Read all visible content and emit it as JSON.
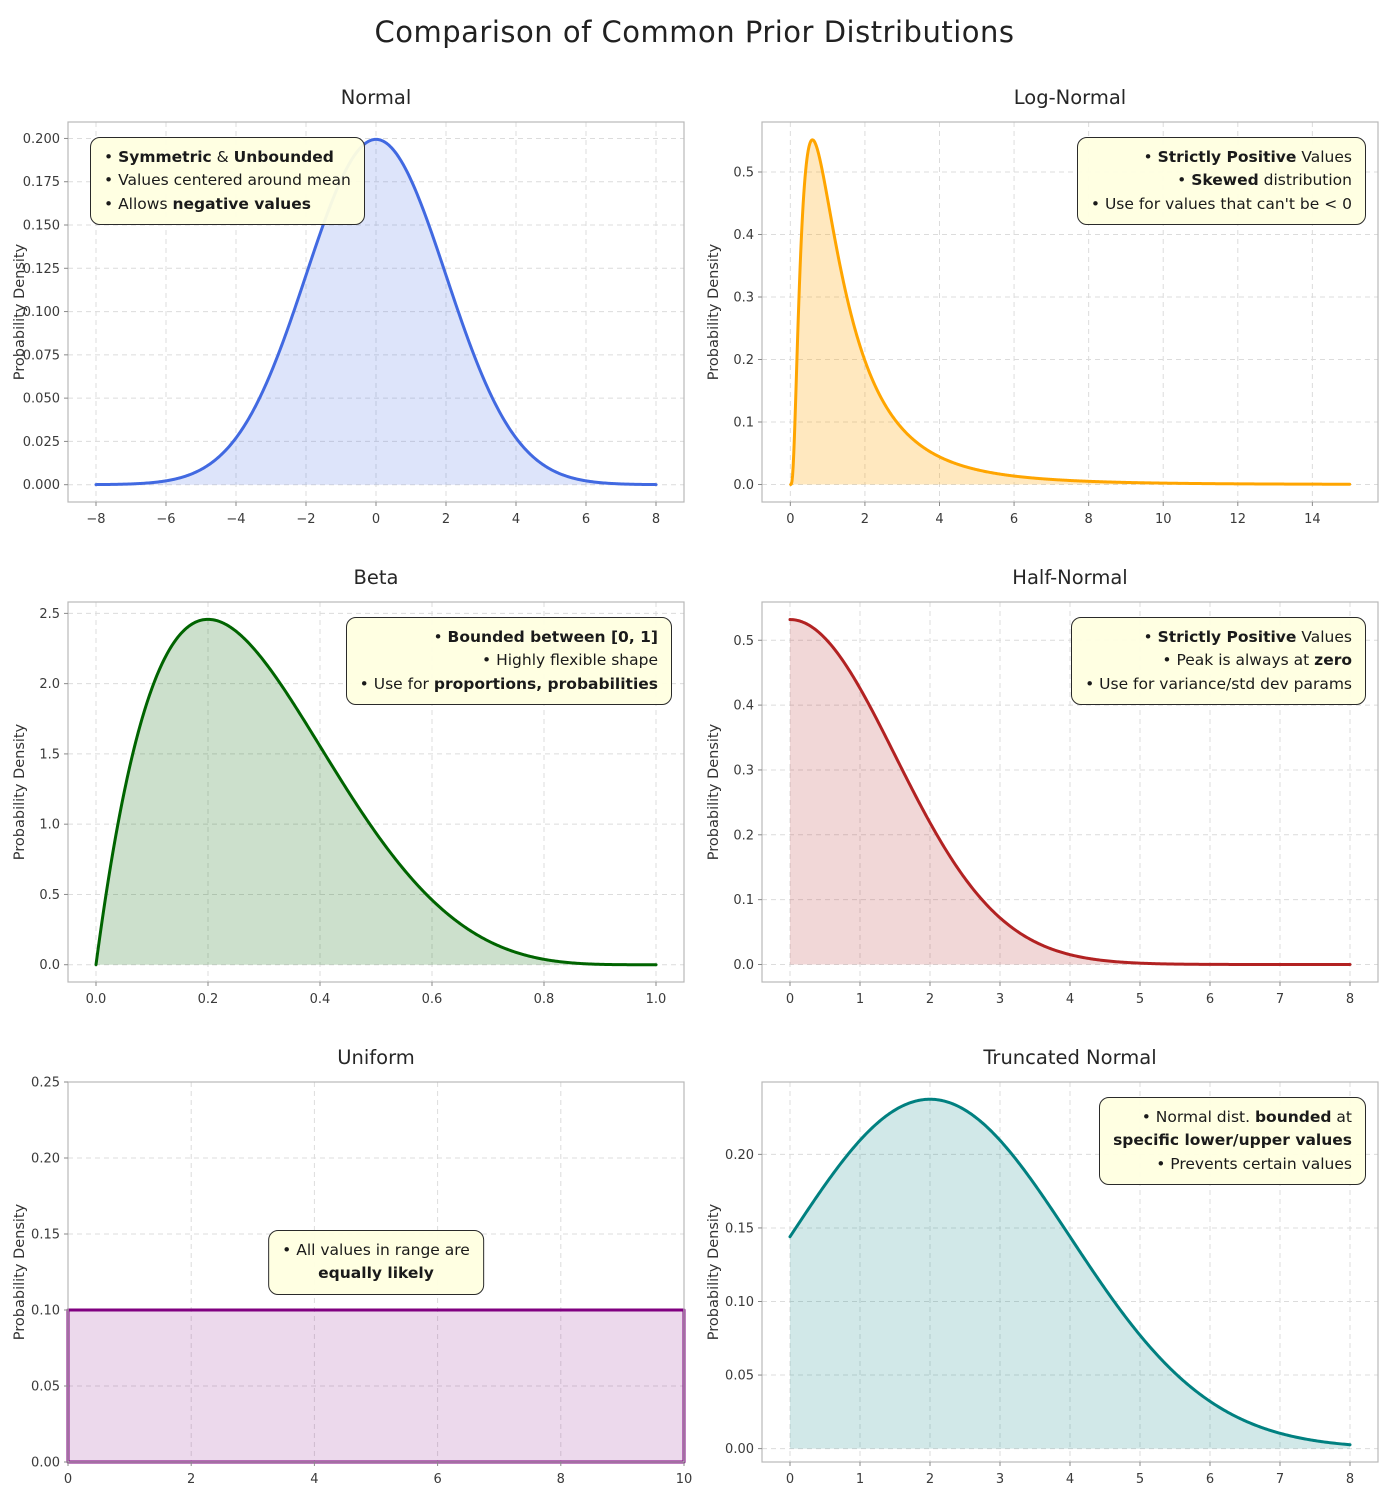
{
  "figure_title": "Comparison of Common Prior Distributions",
  "ylabel": "Probability Density",
  "chart_data": [
    {
      "type": "area",
      "title": "Normal",
      "line_color": "#4169e1",
      "fill_alpha": 0.18,
      "distribution": {
        "kind": "normal",
        "mu": 0,
        "sigma": 2
      },
      "peak": {
        "x": 0,
        "y": 0.199
      },
      "x_data_range": [
        -8,
        8
      ],
      "xlim": [
        -8.8,
        8.8
      ],
      "ylim": [
        -0.01,
        0.2095
      ],
      "x_ticks": [
        -8,
        -6,
        -4,
        -2,
        0,
        2,
        4,
        6,
        8
      ],
      "x_tick_decimals": 0,
      "y_ticks": [
        0,
        0.025,
        0.05,
        0.075,
        0.1,
        0.125,
        0.15,
        0.175,
        0.2
      ],
      "y_tick_decimals": 3,
      "grid": true,
      "annotation": {
        "align": "left",
        "anchor": "top-left",
        "lines": [
          [
            {
              "t": "• "
            },
            {
              "t": "Symmetric",
              "b": true
            },
            {
              "t": " & "
            },
            {
              "t": "Unbounded",
              "b": true
            }
          ],
          [
            {
              "t": "• Values centered around mean"
            }
          ],
          [
            {
              "t": "• Allows "
            },
            {
              "t": "negative values",
              "b": true
            }
          ]
        ]
      }
    },
    {
      "type": "area",
      "title": "Log-Normal",
      "line_color": "#ffa500",
      "fill_alpha": 0.25,
      "distribution": {
        "kind": "lognormal",
        "mu": 0.2,
        "sigma": 0.85
      },
      "peak": {
        "x": 0.59,
        "y": 0.55
      },
      "x_data_range": [
        0.01,
        15
      ],
      "xlim": [
        -0.76,
        15.76
      ],
      "ylim": [
        -0.028,
        0.58
      ],
      "x_ticks": [
        0,
        2,
        4,
        6,
        8,
        10,
        12,
        14
      ],
      "x_tick_decimals": 0,
      "y_ticks": [
        0,
        0.1,
        0.2,
        0.3,
        0.4,
        0.5
      ],
      "y_tick_decimals": 1,
      "grid": true,
      "annotation": {
        "align": "right",
        "anchor": "top-right",
        "lines": [
          [
            {
              "t": "• "
            },
            {
              "t": "Strictly Positive",
              "b": true
            },
            {
              "t": " Values"
            }
          ],
          [
            {
              "t": "• "
            },
            {
              "t": "Skewed",
              "b": true
            },
            {
              "t": " distribution"
            }
          ],
          [
            {
              "t": "• Use for values that can't be < 0"
            }
          ]
        ]
      }
    },
    {
      "type": "area",
      "title": "Beta",
      "line_color": "#006400",
      "fill_alpha": 0.2,
      "distribution": {
        "kind": "beta",
        "a": 2,
        "b": 5,
        "coef": 30
      },
      "peak": {
        "x": 0.2,
        "y": 2.46
      },
      "x_data_range": [
        0,
        1
      ],
      "xlim": [
        -0.05,
        1.05
      ],
      "ylim": [
        -0.123,
        2.581
      ],
      "x_ticks": [
        0,
        0.2,
        0.4,
        0.6,
        0.8,
        1
      ],
      "x_tick_decimals": 1,
      "y_ticks": [
        0,
        0.5,
        1,
        1.5,
        2,
        2.5
      ],
      "y_tick_decimals": 1,
      "grid": true,
      "annotation": {
        "align": "right",
        "anchor": "top-right",
        "lines": [
          [
            {
              "t": "• "
            },
            {
              "t": "Bounded between [0, 1]",
              "b": true
            }
          ],
          [
            {
              "t": "• Highly flexible shape"
            }
          ],
          [
            {
              "t": "• Use for "
            },
            {
              "t": "proportions, probabilities",
              "b": true
            }
          ]
        ]
      }
    },
    {
      "type": "area",
      "title": "Half-Normal",
      "line_color": "#b22222",
      "fill_alpha": 0.18,
      "distribution": {
        "kind": "halfnormal",
        "sigma": 1.5
      },
      "peak": {
        "x": 0,
        "y": 0.53
      },
      "x_data_range": [
        0,
        8
      ],
      "xlim": [
        -0.4,
        8.4
      ],
      "ylim": [
        -0.027,
        0.559
      ],
      "x_ticks": [
        0,
        1,
        2,
        3,
        4,
        5,
        6,
        7,
        8
      ],
      "x_tick_decimals": 0,
      "y_ticks": [
        0,
        0.1,
        0.2,
        0.3,
        0.4,
        0.5
      ],
      "y_tick_decimals": 1,
      "grid": true,
      "annotation": {
        "align": "right",
        "anchor": "top-right",
        "lines": [
          [
            {
              "t": "• "
            },
            {
              "t": "Strictly Positive",
              "b": true
            },
            {
              "t": " Values"
            }
          ],
          [
            {
              "t": "• Peak is always at "
            },
            {
              "t": "zero",
              "b": true
            }
          ],
          [
            {
              "t": "• Use for variance/std dev params"
            }
          ]
        ]
      }
    },
    {
      "type": "area",
      "title": "Uniform",
      "line_color": "#800080",
      "fill_alpha": 0.15,
      "distribution": {
        "kind": "uniform",
        "a": 0,
        "b": 10
      },
      "peak": {
        "x": "0 to 10",
        "y": 0.1
      },
      "x_data_range": [
        0,
        10
      ],
      "xlim": [
        0,
        10
      ],
      "ylim": [
        0,
        0.25
      ],
      "x_ticks": [
        0,
        2,
        4,
        6,
        8,
        10
      ],
      "x_tick_decimals": 0,
      "y_ticks": [
        0,
        0.05,
        0.1,
        0.15,
        0.2,
        0.25
      ],
      "y_tick_decimals": 2,
      "grid": true,
      "annotation": {
        "align": "center",
        "anchor": "center",
        "lines": [
          [
            {
              "t": "• All values in range are"
            }
          ],
          [
            {
              "t": "equally likely",
              "b": true
            }
          ]
        ]
      }
    },
    {
      "type": "area",
      "title": "Truncated Normal",
      "line_color": "#008080",
      "fill_alpha": 0.18,
      "distribution": {
        "kind": "truncnormal",
        "mu": 2,
        "sigma": 2,
        "lo": 0,
        "hi": 8,
        "z": 0.84
      },
      "peak": {
        "x": 2,
        "y": 0.237
      },
      "x_data_range": [
        0,
        8
      ],
      "xlim": [
        -0.4,
        8.4
      ],
      "ylim": [
        -0.0091,
        0.2492
      ],
      "x_ticks": [
        0,
        1,
        2,
        3,
        4,
        5,
        6,
        7,
        8
      ],
      "x_tick_decimals": 0,
      "y_ticks": [
        0,
        0.05,
        0.1,
        0.15,
        0.2
      ],
      "y_tick_decimals": 2,
      "grid": true,
      "annotation": {
        "align": "right",
        "anchor": "top-right",
        "lines": [
          [
            {
              "t": "• Normal dist. "
            },
            {
              "t": "bounded",
              "b": true
            },
            {
              "t": " at"
            }
          ],
          [
            {
              "t": "specific lower/upper values",
              "b": true
            }
          ],
          [
            {
              "t": "• Prevents certain values"
            }
          ]
        ]
      }
    }
  ]
}
